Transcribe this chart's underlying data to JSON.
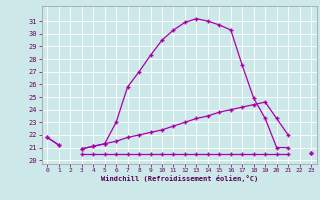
{
  "title": "",
  "xlabel": "Windchill (Refroidissement éolien,°C)",
  "background_color": "#cde8e8",
  "grid_color": "#ffffff",
  "line_color": "#aa00aa",
  "hours": [
    0,
    1,
    2,
    3,
    4,
    5,
    6,
    7,
    8,
    9,
    10,
    11,
    12,
    13,
    14,
    15,
    16,
    17,
    18,
    19,
    20,
    21,
    22,
    23
  ],
  "line_main": [
    21.8,
    21.2,
    null,
    20.9,
    21.1,
    21.3,
    23.0,
    25.8,
    27.0,
    28.3,
    29.5,
    30.3,
    30.9,
    31.2,
    31.0,
    30.7,
    30.3,
    27.5,
    24.9,
    23.3,
    21.0,
    21.0,
    null,
    20.6
  ],
  "line_mid": [
    21.8,
    21.2,
    null,
    20.9,
    21.1,
    21.3,
    21.5,
    21.8,
    22.0,
    22.2,
    22.4,
    22.7,
    23.0,
    23.3,
    23.5,
    23.8,
    24.0,
    24.2,
    24.4,
    24.6,
    23.3,
    22.0,
    null,
    20.6
  ],
  "line_flat": [
    null,
    null,
    null,
    20.5,
    20.5,
    20.5,
    20.5,
    20.5,
    20.5,
    20.5,
    20.5,
    20.5,
    20.5,
    20.5,
    20.5,
    20.5,
    20.5,
    20.5,
    20.5,
    20.5,
    20.5,
    20.5,
    null,
    20.6
  ],
  "ylim": [
    19.7,
    32.2
  ],
  "xlim": [
    -0.5,
    23.5
  ],
  "yticks": [
    20,
    21,
    22,
    23,
    24,
    25,
    26,
    27,
    28,
    29,
    30,
    31
  ],
  "xticks": [
    0,
    1,
    2,
    3,
    4,
    5,
    6,
    7,
    8,
    9,
    10,
    11,
    12,
    13,
    14,
    15,
    16,
    17,
    18,
    19,
    20,
    21,
    22,
    23
  ]
}
